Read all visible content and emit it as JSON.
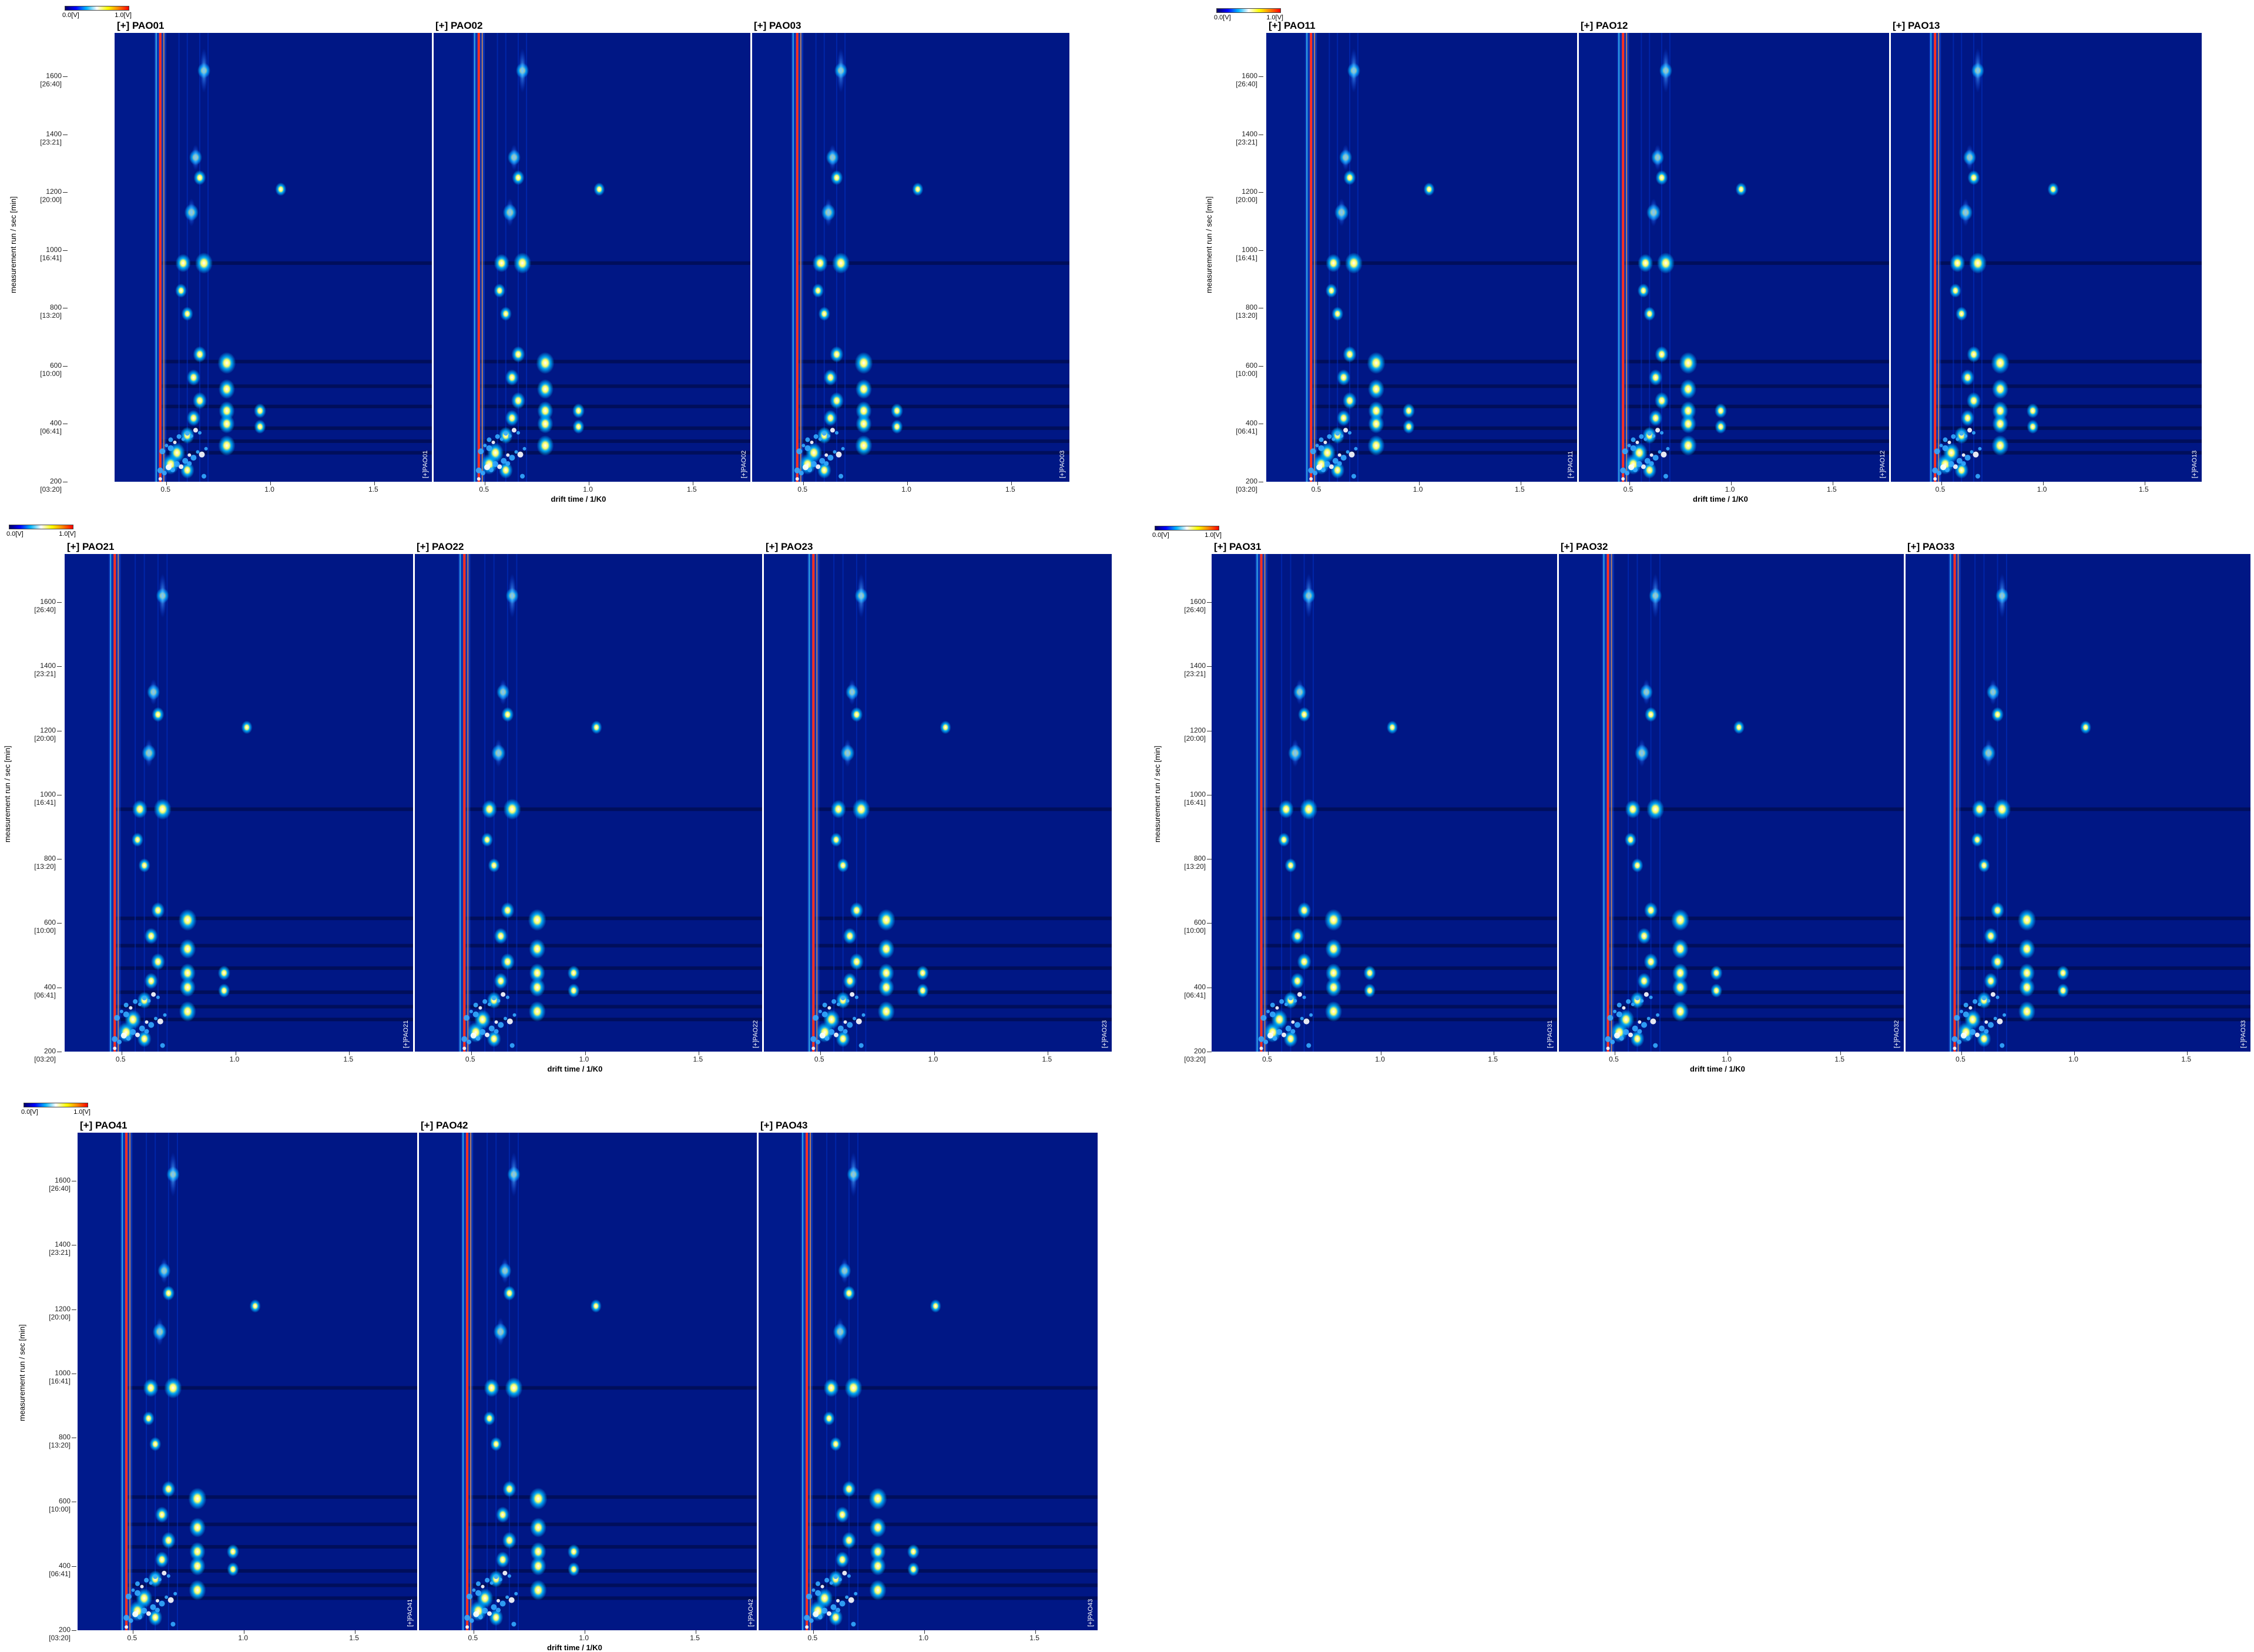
{
  "colors": {
    "background": "#001a8c",
    "signal_low": "#00b4ff",
    "signal_mid": "#ffffff",
    "signal_high": "#ff2a00",
    "reactant_ion_peak": "#ff3020"
  },
  "chart_data": {
    "type": "heatmap",
    "colorbar": {
      "min_label": "0.0[V]",
      "max_label": "1.0[V]"
    },
    "xlabel": "drift time / 1/K0",
    "ylabel": "measurement run / sec [min]",
    "x_ticks": [
      "0.5",
      "1.0",
      "1.5"
    ],
    "x_tick_values": [
      0.5,
      1.0,
      1.5
    ],
    "xlim": [
      0.25,
      1.78
    ],
    "y_ticks": [
      {
        "value": 1600,
        "main": "1600",
        "sub": "[26:40]"
      },
      {
        "value": 1400,
        "main": "1400",
        "sub": "[23:21]"
      },
      {
        "value": 1200,
        "main": "1200",
        "sub": "[20:00]"
      },
      {
        "value": 1000,
        "main": "1000",
        "sub": "[16:41]"
      },
      {
        "value": 800,
        "main": "800",
        "sub": "[13:20]"
      },
      {
        "value": 600,
        "main": "600",
        "sub": "[10:00]"
      },
      {
        "value": 400,
        "main": "400",
        "sub": "[06:41]"
      },
      {
        "value": 200,
        "main": "200",
        "sub": "[03:20]"
      }
    ],
    "ylim": [
      200,
      1750
    ],
    "groups": [
      {
        "panels": [
          {
            "title": "[+] PAO01",
            "id": "[+]PAO01"
          },
          {
            "title": "[+] PAO02",
            "id": "[+]PAO02"
          },
          {
            "title": "[+] PAO03",
            "id": "[+]PAO03"
          }
        ]
      },
      {
        "panels": [
          {
            "title": "[+] PAO11",
            "id": "[+]PAO11"
          },
          {
            "title": "[+] PAO12",
            "id": "[+]PAO12"
          },
          {
            "title": "[+] PAO13",
            "id": "[+]PAO13"
          }
        ]
      },
      {
        "panels": [
          {
            "title": "[+] PAO21",
            "id": "[+]PAO21"
          },
          {
            "title": "[+] PAO22",
            "id": "[+]PAO22"
          },
          {
            "title": "[+] PAO23",
            "id": "[+]PAO23"
          }
        ]
      },
      {
        "panels": [
          {
            "title": "[+] PAO31",
            "id": "[+]PAO31"
          },
          {
            "title": "[+] PAO32",
            "id": "[+]PAO32"
          },
          {
            "title": "[+] PAO33",
            "id": "[+]PAO33"
          }
        ]
      },
      {
        "panels": [
          {
            "title": "[+] PAO41",
            "id": "[+]PAO41"
          },
          {
            "title": "[+] PAO42",
            "id": "[+]PAO42"
          },
          {
            "title": "[+] PAO43",
            "id": "[+]PAO43"
          }
        ]
      }
    ],
    "reactant_ion_peak": {
      "x": 0.47
    },
    "horizontal_bands": [
      955,
      615,
      530,
      460,
      385,
      340,
      300
    ],
    "spots": [
      {
        "x": 0.79,
        "y": 610,
        "intensity": 0.95
      },
      {
        "x": 0.79,
        "y": 520,
        "intensity": 0.8
      },
      {
        "x": 0.79,
        "y": 445,
        "intensity": 0.75
      },
      {
        "x": 0.79,
        "y": 400,
        "intensity": 0.75
      },
      {
        "x": 0.79,
        "y": 325,
        "intensity": 0.85
      },
      {
        "x": 0.68,
        "y": 955,
        "intensity": 0.9
      },
      {
        "x": 0.58,
        "y": 955,
        "intensity": 0.7
      },
      {
        "x": 0.62,
        "y": 1130,
        "intensity": 0.6
      },
      {
        "x": 0.68,
        "y": 1620,
        "intensity": 0.5
      },
      {
        "x": 0.64,
        "y": 1320,
        "intensity": 0.5
      },
      {
        "x": 0.66,
        "y": 1250,
        "intensity": 0.45
      },
      {
        "x": 1.05,
        "y": 1210,
        "intensity": 0.35
      },
      {
        "x": 0.95,
        "y": 445,
        "intensity": 0.45
      },
      {
        "x": 0.95,
        "y": 390,
        "intensity": 0.4
      },
      {
        "x": 0.57,
        "y": 860,
        "intensity": 0.4
      },
      {
        "x": 0.6,
        "y": 780,
        "intensity": 0.4
      },
      {
        "x": 0.66,
        "y": 640,
        "intensity": 0.55
      },
      {
        "x": 0.63,
        "y": 560,
        "intensity": 0.55
      },
      {
        "x": 0.66,
        "y": 480,
        "intensity": 0.6
      },
      {
        "x": 0.63,
        "y": 420,
        "intensity": 0.55
      },
      {
        "x": 0.6,
        "y": 360,
        "intensity": 0.6
      },
      {
        "x": 0.55,
        "y": 300,
        "intensity": 0.8
      },
      {
        "x": 0.52,
        "y": 260,
        "intensity": 0.85
      },
      {
        "x": 0.6,
        "y": 240,
        "intensity": 0.6
      }
    ]
  }
}
